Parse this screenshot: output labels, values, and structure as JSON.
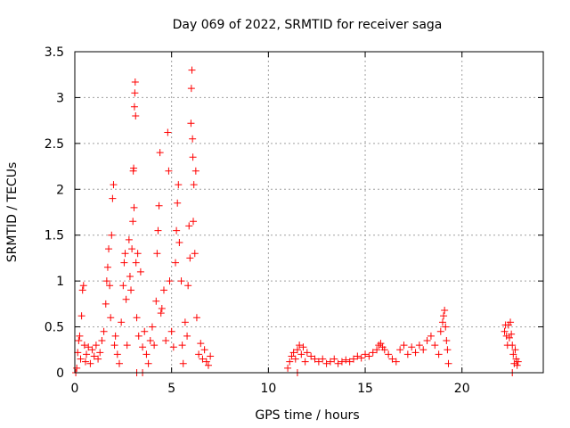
{
  "chart_data": {
    "type": "scatter",
    "title": "Day 069 of 2022, SRMTID for receiver saga",
    "xlabel": "GPS time / hours",
    "ylabel": "SRMTID / TECUs",
    "xlim": [
      0,
      24.2
    ],
    "ylim": [
      0,
      3.5
    ],
    "xticks": [
      0,
      5,
      10,
      15,
      20
    ],
    "xtick_labels": [
      "0",
      "5",
      "10",
      "15",
      "20"
    ],
    "yticks": [
      0,
      0.5,
      1,
      1.5,
      2,
      2.5,
      3,
      3.5
    ],
    "ytick_labels": [
      "0",
      "0.5",
      "1",
      "1.5",
      "2",
      "2.5",
      "3",
      "3.5"
    ],
    "grid": true,
    "marker": "+",
    "color": "#ff0000",
    "series": [
      {
        "name": "SRMTID",
        "points": [
          [
            0.1,
            0.05
          ],
          [
            0.15,
            0.22
          ],
          [
            0.2,
            0.35
          ],
          [
            0.25,
            0.4
          ],
          [
            0.3,
            0.15
          ],
          [
            0.35,
            0.62
          ],
          [
            0.4,
            0.9
          ],
          [
            0.45,
            0.95
          ],
          [
            0.5,
            0.3
          ],
          [
            0.55,
            0.12
          ],
          [
            0.6,
            0.2
          ],
          [
            0.7,
            0.28
          ],
          [
            0.8,
            0.1
          ],
          [
            0.9,
            0.25
          ],
          [
            1.0,
            0.18
          ],
          [
            1.1,
            0.3
          ],
          [
            1.2,
            0.15
          ],
          [
            1.3,
            0.22
          ],
          [
            1.4,
            0.35
          ],
          [
            1.5,
            0.45
          ],
          [
            1.6,
            0.75
          ],
          [
            1.65,
            1.0
          ],
          [
            1.7,
            1.15
          ],
          [
            1.75,
            1.35
          ],
          [
            1.8,
            0.95
          ],
          [
            1.85,
            0.6
          ],
          [
            1.9,
            1.5
          ],
          [
            1.95,
            1.9
          ],
          [
            2.0,
            2.05
          ],
          [
            2.05,
            0.3
          ],
          [
            2.1,
            0.4
          ],
          [
            2.2,
            0.2
          ],
          [
            2.3,
            0.1
          ],
          [
            2.4,
            0.55
          ],
          [
            2.5,
            0.95
          ],
          [
            2.55,
            1.2
          ],
          [
            2.6,
            1.3
          ],
          [
            2.65,
            0.8
          ],
          [
            2.7,
            0.3
          ],
          [
            2.8,
            1.45
          ],
          [
            2.85,
            1.05
          ],
          [
            2.9,
            0.9
          ],
          [
            2.95,
            1.35
          ],
          [
            3.0,
            1.65
          ],
          [
            3.02,
            2.2
          ],
          [
            3.04,
            2.23
          ],
          [
            3.06,
            1.8
          ],
          [
            3.08,
            2.9
          ],
          [
            3.1,
            3.05
          ],
          [
            3.12,
            3.17
          ],
          [
            3.14,
            2.8
          ],
          [
            3.16,
            1.2
          ],
          [
            3.2,
            0.6
          ],
          [
            3.25,
            1.3
          ],
          [
            3.3,
            0.4
          ],
          [
            3.4,
            1.1
          ],
          [
            3.5,
            0.28
          ],
          [
            3.6,
            0.45
          ],
          [
            3.7,
            0.2
          ],
          [
            3.8,
            0.1
          ],
          [
            3.9,
            0.35
          ],
          [
            4.0,
            0.5
          ],
          [
            4.1,
            0.3
          ],
          [
            4.2,
            0.78
          ],
          [
            4.25,
            1.3
          ],
          [
            4.3,
            1.55
          ],
          [
            4.35,
            1.82
          ],
          [
            4.4,
            2.4
          ],
          [
            4.45,
            0.65
          ],
          [
            4.5,
            0.7
          ],
          [
            4.6,
            0.9
          ],
          [
            4.7,
            0.35
          ],
          [
            4.8,
            2.62
          ],
          [
            4.85,
            2.2
          ],
          [
            4.9,
            1.0
          ],
          [
            5.0,
            0.45
          ],
          [
            5.1,
            0.28
          ],
          [
            5.2,
            1.2
          ],
          [
            5.25,
            1.55
          ],
          [
            5.3,
            1.85
          ],
          [
            5.35,
            2.05
          ],
          [
            5.4,
            1.42
          ],
          [
            5.5,
            1.0
          ],
          [
            5.55,
            0.3
          ],
          [
            5.6,
            0.1
          ],
          [
            5.7,
            0.55
          ],
          [
            5.8,
            0.4
          ],
          [
            5.85,
            0.95
          ],
          [
            5.9,
            1.6
          ],
          [
            5.95,
            1.25
          ],
          [
            6.0,
            2.72
          ],
          [
            6.02,
            3.1
          ],
          [
            6.05,
            3.3
          ],
          [
            6.08,
            2.55
          ],
          [
            6.1,
            2.35
          ],
          [
            6.12,
            1.65
          ],
          [
            6.15,
            2.05
          ],
          [
            6.2,
            1.3
          ],
          [
            6.25,
            2.2
          ],
          [
            6.3,
            0.6
          ],
          [
            6.4,
            0.2
          ],
          [
            6.5,
            0.32
          ],
          [
            6.6,
            0.15
          ],
          [
            6.7,
            0.25
          ],
          [
            6.8,
            0.12
          ],
          [
            6.9,
            0.08
          ],
          [
            7.0,
            0.18
          ],
          [
            0.05,
            0.0
          ],
          [
            3.2,
            0.0
          ],
          [
            3.5,
            0.0
          ],
          [
            11.0,
            0.05
          ],
          [
            11.1,
            0.12
          ],
          [
            11.2,
            0.18
          ],
          [
            11.3,
            0.22
          ],
          [
            11.4,
            0.15
          ],
          [
            11.5,
            0.25
          ],
          [
            11.6,
            0.3
          ],
          [
            11.7,
            0.2
          ],
          [
            11.8,
            0.28
          ],
          [
            11.9,
            0.12
          ],
          [
            12.0,
            0.22
          ],
          [
            12.2,
            0.18
          ],
          [
            12.4,
            0.15
          ],
          [
            12.6,
            0.12
          ],
          [
            12.8,
            0.15
          ],
          [
            13.0,
            0.1
          ],
          [
            13.2,
            0.12
          ],
          [
            13.4,
            0.15
          ],
          [
            13.6,
            0.1
          ],
          [
            13.8,
            0.12
          ],
          [
            14.0,
            0.14
          ],
          [
            14.2,
            0.12
          ],
          [
            14.4,
            0.15
          ],
          [
            14.6,
            0.18
          ],
          [
            14.8,
            0.16
          ],
          [
            15.0,
            0.2
          ],
          [
            15.2,
            0.18
          ],
          [
            15.4,
            0.22
          ],
          [
            15.6,
            0.25
          ],
          [
            15.7,
            0.3
          ],
          [
            15.8,
            0.32
          ],
          [
            15.9,
            0.28
          ],
          [
            16.0,
            0.25
          ],
          [
            16.2,
            0.2
          ],
          [
            16.4,
            0.15
          ],
          [
            16.6,
            0.12
          ],
          [
            16.8,
            0.25
          ],
          [
            17.0,
            0.3
          ],
          [
            17.2,
            0.2
          ],
          [
            17.4,
            0.28
          ],
          [
            17.6,
            0.22
          ],
          [
            17.8,
            0.3
          ],
          [
            18.0,
            0.25
          ],
          [
            18.2,
            0.35
          ],
          [
            18.4,
            0.4
          ],
          [
            18.6,
            0.3
          ],
          [
            18.8,
            0.2
          ],
          [
            18.9,
            0.45
          ],
          [
            19.0,
            0.55
          ],
          [
            19.05,
            0.62
          ],
          [
            19.1,
            0.68
          ],
          [
            19.15,
            0.5
          ],
          [
            19.2,
            0.35
          ],
          [
            19.25,
            0.25
          ],
          [
            19.3,
            0.1
          ],
          [
            11.5,
            0.0
          ],
          [
            22.2,
            0.45
          ],
          [
            22.25,
            0.52
          ],
          [
            22.3,
            0.4
          ],
          [
            22.35,
            0.3
          ],
          [
            22.4,
            0.52
          ],
          [
            22.45,
            0.38
          ],
          [
            22.5,
            0.55
          ],
          [
            22.55,
            0.42
          ],
          [
            22.6,
            0.3
          ],
          [
            22.65,
            0.2
          ],
          [
            22.7,
            0.1
          ],
          [
            22.75,
            0.25
          ],
          [
            22.8,
            0.15
          ],
          [
            22.85,
            0.08
          ],
          [
            22.9,
            0.12
          ],
          [
            22.6,
            0.0
          ]
        ]
      }
    ]
  }
}
